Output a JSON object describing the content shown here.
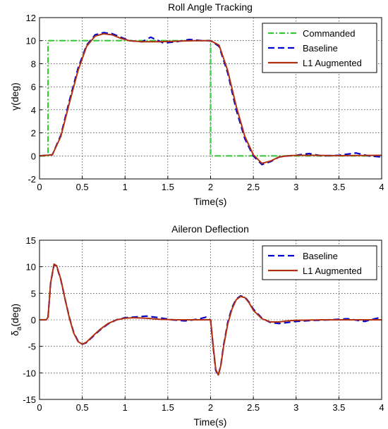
{
  "chart_data": [
    {
      "type": "line",
      "title": "Roll Angle Tracking",
      "xlabel": "Time(s)",
      "ylabel": "γ(deg)",
      "xlim": [
        0,
        4
      ],
      "ylim": [
        -2,
        12
      ],
      "xticks": [
        "0",
        "0.5",
        "1",
        "1.5",
        "2",
        "2.5",
        "3",
        "3.5",
        "4"
      ],
      "yticks": [
        "-2",
        "0",
        "2",
        "4",
        "6",
        "8",
        "10",
        "12"
      ],
      "grid": true,
      "legend": "top-right",
      "series": [
        {
          "name": "Commanded",
          "color": "#33cc33",
          "style": "dashdot",
          "x": [
            0,
            0.1,
            0.1,
            2.0,
            2.0,
            4.0
          ],
          "y": [
            0,
            0,
            10,
            10,
            0,
            0
          ]
        },
        {
          "name": "Baseline",
          "color": "#0000cc",
          "style": "dashed",
          "x": [
            0,
            0.15,
            0.25,
            0.35,
            0.45,
            0.55,
            0.65,
            0.75,
            0.85,
            0.95,
            1.05,
            1.2,
            1.3,
            1.45,
            1.6,
            1.75,
            1.9,
            2.0,
            2.1,
            2.2,
            2.3,
            2.4,
            2.5,
            2.6,
            2.7,
            2.8,
            2.9,
            3.0,
            3.15,
            3.3,
            3.5,
            3.7,
            3.85,
            4.0
          ],
          "y": [
            0,
            0.1,
            1.8,
            4.8,
            7.6,
            9.6,
            10.5,
            10.7,
            10.6,
            10.3,
            10.0,
            9.9,
            10.3,
            9.8,
            9.9,
            10.1,
            10.0,
            10.0,
            9.5,
            7.2,
            4.0,
            1.5,
            0.0,
            -0.75,
            -0.5,
            -0.1,
            0.0,
            0.05,
            0.2,
            0.0,
            0.05,
            0.25,
            0.0,
            -0.1
          ]
        },
        {
          "name": "L1 Augmented",
          "color": "#b03010",
          "style": "solid",
          "x": [
            0,
            0.15,
            0.25,
            0.35,
            0.45,
            0.55,
            0.65,
            0.75,
            0.85,
            0.95,
            1.05,
            1.2,
            1.4,
            1.6,
            1.8,
            2.0,
            2.1,
            2.2,
            2.3,
            2.4,
            2.5,
            2.6,
            2.7,
            2.8,
            2.9,
            3.0,
            3.2,
            3.5,
            4.0
          ],
          "y": [
            0,
            0.1,
            1.7,
            4.6,
            7.4,
            9.5,
            10.4,
            10.6,
            10.5,
            10.2,
            10.0,
            9.9,
            9.9,
            9.95,
            10.0,
            10.0,
            9.6,
            7.4,
            4.3,
            1.7,
            0.1,
            -0.65,
            -0.45,
            -0.1,
            0.0,
            0.05,
            0.05,
            0.02,
            0.05
          ]
        }
      ]
    },
    {
      "type": "line",
      "title": "Aileron Deflection",
      "xlabel": "Time(s)",
      "ylabel": "δa(deg)",
      "ylabel_main": "δ",
      "ylabel_sub": "a",
      "ylabel_tail": "(deg)",
      "xlim": [
        0,
        4
      ],
      "ylim": [
        -15,
        15
      ],
      "xticks": [
        "0",
        "0.5",
        "1",
        "1.5",
        "2",
        "2.5",
        "3",
        "3.5",
        "4"
      ],
      "yticks": [
        "-15",
        "-10",
        "-5",
        "0",
        "5",
        "10",
        "15"
      ],
      "grid": true,
      "legend": "top-right",
      "series": [
        {
          "name": "Baseline",
          "color": "#0000cc",
          "style": "dashed",
          "x": [
            0,
            0.08,
            0.1,
            0.13,
            0.17,
            0.2,
            0.25,
            0.3,
            0.35,
            0.4,
            0.45,
            0.5,
            0.55,
            0.6,
            0.7,
            0.8,
            0.9,
            1.0,
            1.1,
            1.25,
            1.4,
            1.55,
            1.7,
            1.85,
            1.95,
            2.0,
            2.03,
            2.06,
            2.09,
            2.12,
            2.15,
            2.2,
            2.25,
            2.3,
            2.35,
            2.4,
            2.45,
            2.5,
            2.6,
            2.7,
            2.8,
            2.9,
            3.0,
            3.2,
            3.4,
            3.6,
            3.8,
            3.9,
            4.0
          ],
          "y": [
            0,
            0,
            0.5,
            7.0,
            10.4,
            10.1,
            7.5,
            3.8,
            0.4,
            -2.4,
            -4.0,
            -4.6,
            -4.3,
            -3.5,
            -2.0,
            -0.8,
            0.0,
            0.4,
            0.5,
            0.7,
            0.4,
            0.0,
            -0.2,
            0.1,
            0.5,
            0.0,
            -5.0,
            -9.5,
            -10.5,
            -8.5,
            -5.0,
            -0.5,
            2.3,
            3.9,
            4.5,
            4.3,
            3.3,
            2.0,
            0.3,
            -0.5,
            -0.7,
            -0.5,
            -0.3,
            -0.1,
            0.0,
            0.2,
            -0.3,
            0.1,
            0.5
          ]
        },
        {
          "name": "L1 Augmented",
          "color": "#b03010",
          "style": "solid",
          "x": [
            0,
            0.08,
            0.1,
            0.13,
            0.17,
            0.2,
            0.25,
            0.3,
            0.35,
            0.4,
            0.45,
            0.5,
            0.55,
            0.6,
            0.7,
            0.8,
            0.9,
            1.0,
            1.1,
            1.25,
            1.4,
            1.6,
            1.8,
            1.95,
            2.0,
            2.03,
            2.06,
            2.09,
            2.12,
            2.15,
            2.2,
            2.25,
            2.3,
            2.35,
            2.4,
            2.45,
            2.5,
            2.6,
            2.7,
            2.8,
            2.9,
            3.0,
            3.3,
            3.6,
            4.0
          ],
          "y": [
            0,
            0,
            0.5,
            7.0,
            10.5,
            10.2,
            7.6,
            3.8,
            0.3,
            -2.5,
            -4.1,
            -4.6,
            -4.2,
            -3.4,
            -1.9,
            -0.7,
            0.0,
            0.3,
            0.4,
            0.3,
            0.1,
            0.0,
            0.0,
            0.0,
            0.0,
            -4.8,
            -9.3,
            -10.4,
            -8.6,
            -5.2,
            -0.8,
            2.0,
            3.8,
            4.4,
            4.2,
            3.2,
            1.8,
            0.2,
            -0.4,
            -0.4,
            -0.2,
            -0.1,
            0.0,
            0.0,
            0.0
          ]
        }
      ]
    }
  ]
}
